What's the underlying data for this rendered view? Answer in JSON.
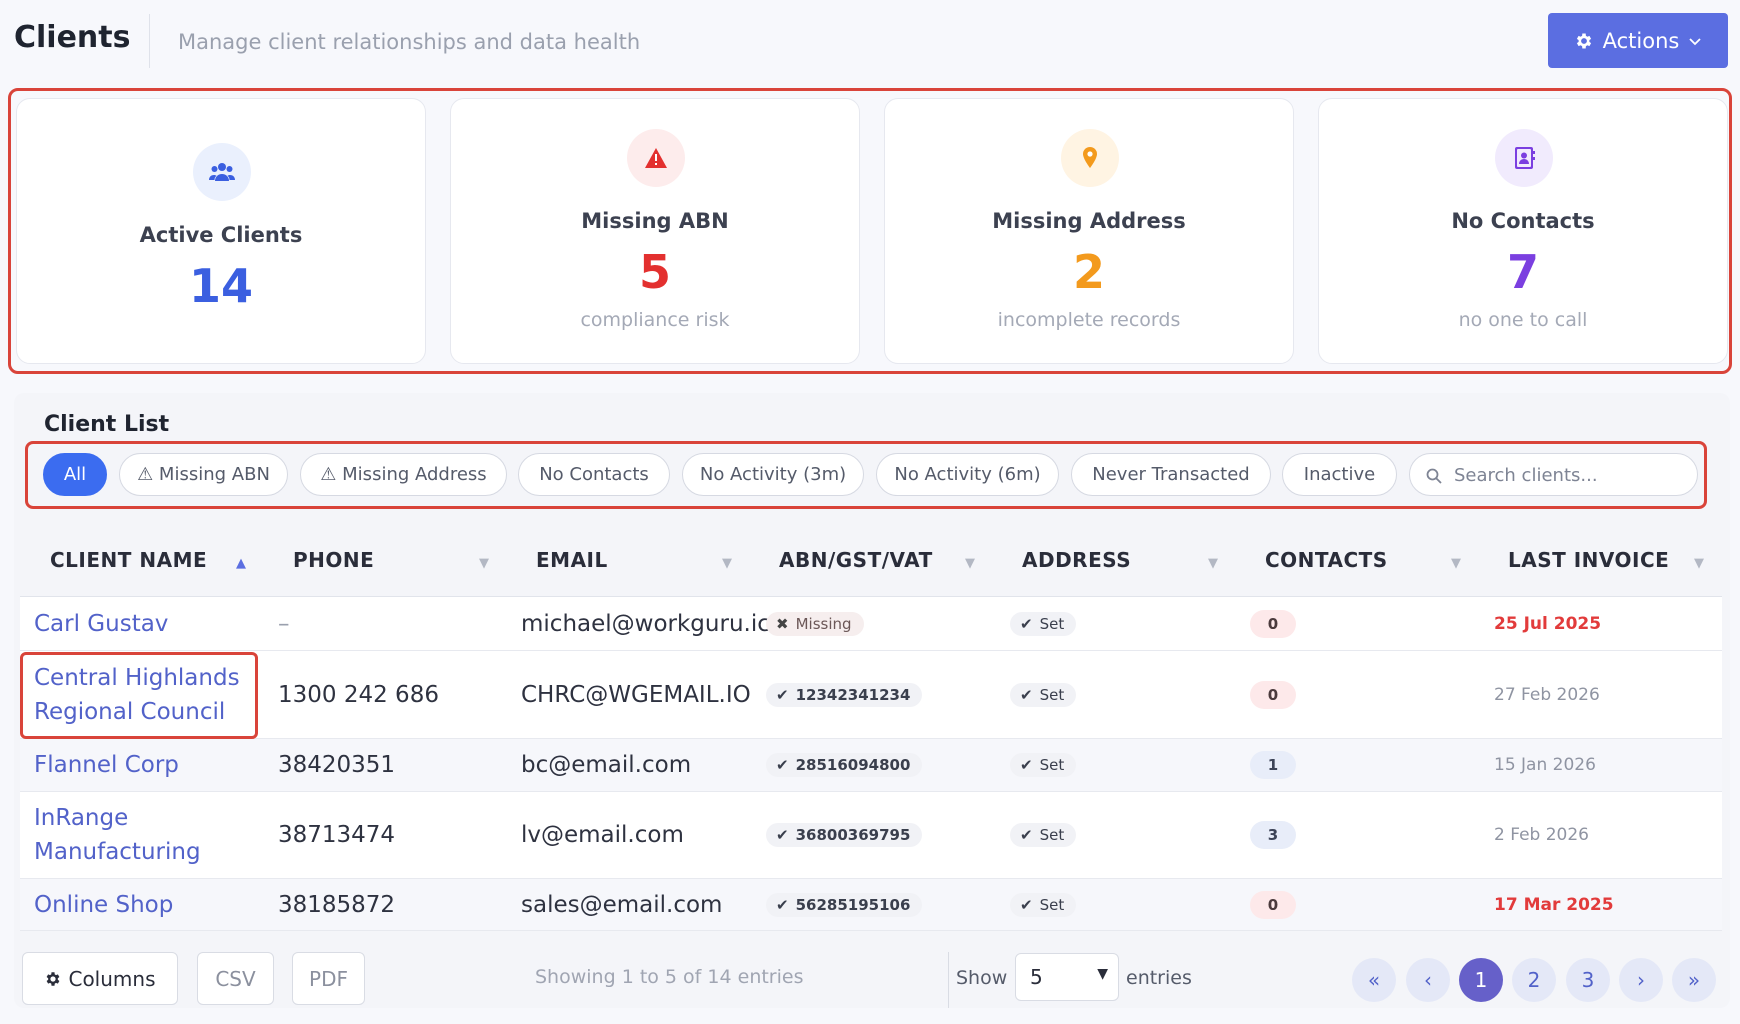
{
  "header": {
    "title": "Clients",
    "subtitle": "Manage client relationships and data health",
    "actions_label": "Actions"
  },
  "stats": [
    {
      "label": "Active Clients",
      "value": "14",
      "sub": "",
      "color": "#3b5fe0",
      "icon": "users-icon",
      "icon_bg": "#eaf0fd"
    },
    {
      "label": "Missing ABN",
      "value": "5",
      "sub": "compliance risk",
      "color": "#e3302f",
      "icon": "warning-icon",
      "icon_bg": "#fdecec"
    },
    {
      "label": "Missing Address",
      "value": "2",
      "sub": "incomplete records",
      "color": "#f39a1d",
      "icon": "map-pin-icon",
      "icon_bg": "#fff4e3"
    },
    {
      "label": "No Contacts",
      "value": "7",
      "sub": "no one to call",
      "color": "#7b3fe0",
      "icon": "address-book-icon",
      "icon_bg": "#f1ebfd"
    }
  ],
  "list": {
    "title": "Client List",
    "filters": [
      {
        "label": "All",
        "active": true
      },
      {
        "label": "⚠ Missing ABN",
        "active": false
      },
      {
        "label": "⚠ Missing Address",
        "active": false
      },
      {
        "label": "No Contacts",
        "active": false
      },
      {
        "label": "No Activity (3m)",
        "active": false
      },
      {
        "label": "No Activity (6m)",
        "active": false
      },
      {
        "label": "Never Transacted",
        "active": false
      },
      {
        "label": "Inactive",
        "active": false
      }
    ],
    "search_placeholder": "Search clients..."
  },
  "table": {
    "columns": [
      "CLIENT NAME",
      "PHONE",
      "EMAIL",
      "ABN/GST/VAT",
      "ADDRESS",
      "CONTACTS",
      "LAST INVOICE"
    ],
    "sorted_column": "CLIENT NAME",
    "rows": [
      {
        "name": "Carl Gustav",
        "phone": "–",
        "email": "michael@workguru.ic",
        "abn": "Missing",
        "abn_missing": true,
        "address": "Set",
        "contacts": "0",
        "last_invoice": "25 Jul 2025",
        "overdue": true
      },
      {
        "name": "Central Highlands Regional Council",
        "phone": "1300 242 686",
        "email": "CHRC@WGEMAIL.IO",
        "abn": "12342341234",
        "abn_missing": false,
        "address": "Set",
        "contacts": "0",
        "last_invoice": "27 Feb 2026",
        "overdue": false
      },
      {
        "name": "Flannel Corp",
        "phone": "38420351",
        "email": "bc@email.com",
        "abn": "28516094800",
        "abn_missing": false,
        "address": "Set",
        "contacts": "1",
        "last_invoice": "15 Jan 2026",
        "overdue": false
      },
      {
        "name": "InRange Manufacturing",
        "phone": "38713474",
        "email": "lv@email.com",
        "abn": "36800369795",
        "abn_missing": false,
        "address": "Set",
        "contacts": "3",
        "last_invoice": "2 Feb 2026",
        "overdue": false
      },
      {
        "name": "Online Shop",
        "phone": "38185872",
        "email": "sales@email.com",
        "abn": "56285195106",
        "abn_missing": false,
        "address": "Set",
        "contacts": "0",
        "last_invoice": "17 Mar 2025",
        "overdue": true
      }
    ]
  },
  "footer": {
    "columns_label": "Columns",
    "csv_label": "CSV",
    "pdf_label": "PDF",
    "showing": "Showing 1 to 5 of 14 entries",
    "show_label": "Show",
    "page_size": "5",
    "entries_label": "entries",
    "pages": [
      "1",
      "2",
      "3"
    ],
    "current_page": "1",
    "first_label": "«",
    "prev_label": "‹",
    "next_label": "›",
    "last_label": "»"
  }
}
